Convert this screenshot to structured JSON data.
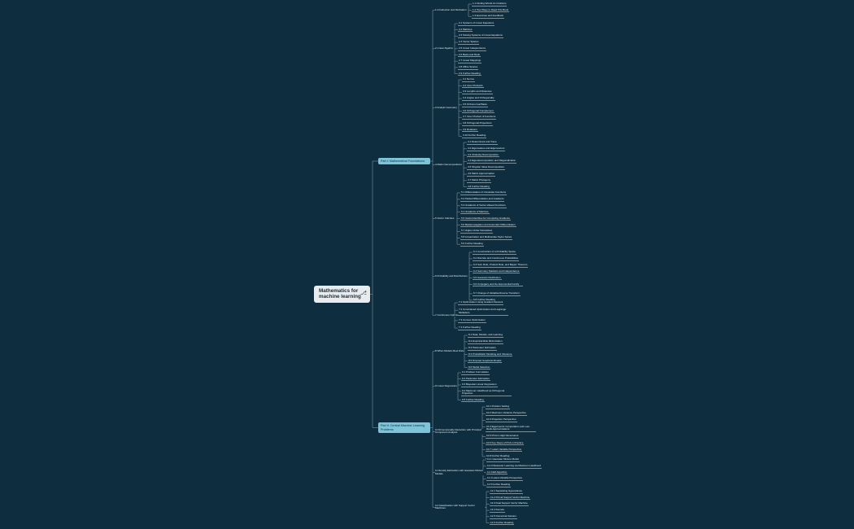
{
  "root": {
    "title": "Mathematics for machine learning",
    "icon": "book-icon"
  },
  "parts": [
    {
      "label": "Part I: Mathematical Foundations",
      "chapters": [
        {
          "label": "1 Introduction and Motivation",
          "sections": [
            "1.1 Finding Words for Intuitions",
            "1.2 Two Ways to Read This Book",
            "1.3 Exercises and Feedback"
          ]
        },
        {
          "label": "2 Linear Algebra",
          "sections": [
            "2.1 Systems of Linear Equations",
            "2.2 Matrices",
            "2.3 Solving Systems of Linear Equations",
            "2.4 Vector Spaces",
            "2.5 Linear Independence",
            "2.6 Basis and Rank",
            "2.7 Linear Mappings",
            "2.8 Affine Spaces",
            "2.9 Further Reading"
          ]
        },
        {
          "label": "3 Analytic Geometry",
          "sections": [
            "3.1 Norms",
            "3.2 Inner Products",
            "3.3 Lengths and Distances",
            "3.4 Angles and Orthogonality",
            "3.5 Orthonormal Basis",
            "3.6 Orthogonal Complement",
            "3.7 Inner Product of Functions",
            "3.8 Orthogonal Projections",
            "3.9 Rotations",
            "3.10 Further Reading"
          ]
        },
        {
          "label": "4 Matrix Decompositions",
          "sections": [
            "4.1 Determinant and Trace",
            "4.2 Eigenvalues and Eigenvectors",
            "4.3 Cholesky Decomposition",
            "4.4 Eigendecomposition and Diagonalization",
            "4.5 Singular Value Decomposition",
            "4.6 Matrix Approximation",
            "4.7 Matrix Phylogeny",
            "4.8 Further Reading"
          ]
        },
        {
          "label": "5 Vector Calculus",
          "sections": [
            "5.1 Differentiation of Univariate Functions",
            "5.2 Partial Differentiation and Gradients",
            "5.3 Gradients of Vector-Valued Functions",
            "5.4 Gradients of Matrices",
            "5.5 Useful Identities for Computing Gradients",
            "5.6 Backpropagation and Automatic Differentiation",
            "5.7 Higher-Order Derivatives",
            "5.8 Linearization and Multivariate Taylor Series",
            "5.9 Further Reading"
          ]
        },
        {
          "label": "6 Probability and Distributions",
          "sections": [
            "6.1 Construction of a Probability Space",
            "6.2 Discrete and Continuous Probabilities",
            "6.3 Sum Rule, Product Rule, and Bayes' Theorem",
            "6.4 Summary Statistics and Independence",
            "6.5 Gaussian Distribution",
            "6.6 Conjugacy and the Exponential Family",
            "6.7 Change of Variables/Inverse Transform",
            "6.8 Further Reading"
          ]
        },
        {
          "label": "7 Continuous Optimization",
          "sections": [
            "7.1 Optimization Using Gradient Descent",
            "7.2 Constrained Optimization and Lagrange Multipliers",
            "7.3 Convex Optimization",
            "7.4 Further Reading"
          ]
        }
      ]
    },
    {
      "label": "Part II: Central Machine Learning Problems",
      "chapters": [
        {
          "label": "8 When Models Meet Data",
          "sections": [
            "8.1 Data, Models, and Learning",
            "8.2 Empirical Risk Minimization",
            "8.3 Parameter Estimation",
            "8.4 Probabilistic Modeling and Inference",
            "8.5 Directed Graphical Models",
            "8.6 Model Selection"
          ]
        },
        {
          "label": "9 Linear Regression",
          "sections": [
            "9.1 Problem Formulation",
            "9.2 Parameter Estimation",
            "9.3 Bayesian Linear Regression",
            "9.4 Maximum Likelihood as Orthogonal Projection",
            "9.5 Further Reading"
          ]
        },
        {
          "label": "10 Dimensionality Reduction with Principal Component Analysis",
          "sections": [
            "10.1 Problem Setting",
            "10.2 Maximum Variance Perspective",
            "10.3 Projection Perspective",
            "10.4 Eigenvector Computation and Low-Rank Approximations",
            "10.5 PCA in High Dimensions",
            "10.6 Key Steps of PCA in Practice",
            "10.7 Latent Variable Perspective",
            "10.8 Further Reading"
          ]
        },
        {
          "label": "11 Density Estimation with Gaussian Mixture Models",
          "sections": [
            "11.1 Gaussian Mixture Model",
            "11.2 Parameter Learning via Maximum Likelihood",
            "11.3 EM Algorithm",
            "11.4 Latent-Variable Perspective",
            "11.5 Further Reading"
          ]
        },
        {
          "label": "12 Classification with Support Vector Machines",
          "sections": [
            "12.1 Separating Hyperplanes",
            "12.2 Primal Support Vector Machine",
            "12.3 Dual Support Vector Machine",
            "12.4 Kernels",
            "12.5 Numerical Solution",
            "12.6 Further Reading"
          ]
        }
      ]
    }
  ]
}
